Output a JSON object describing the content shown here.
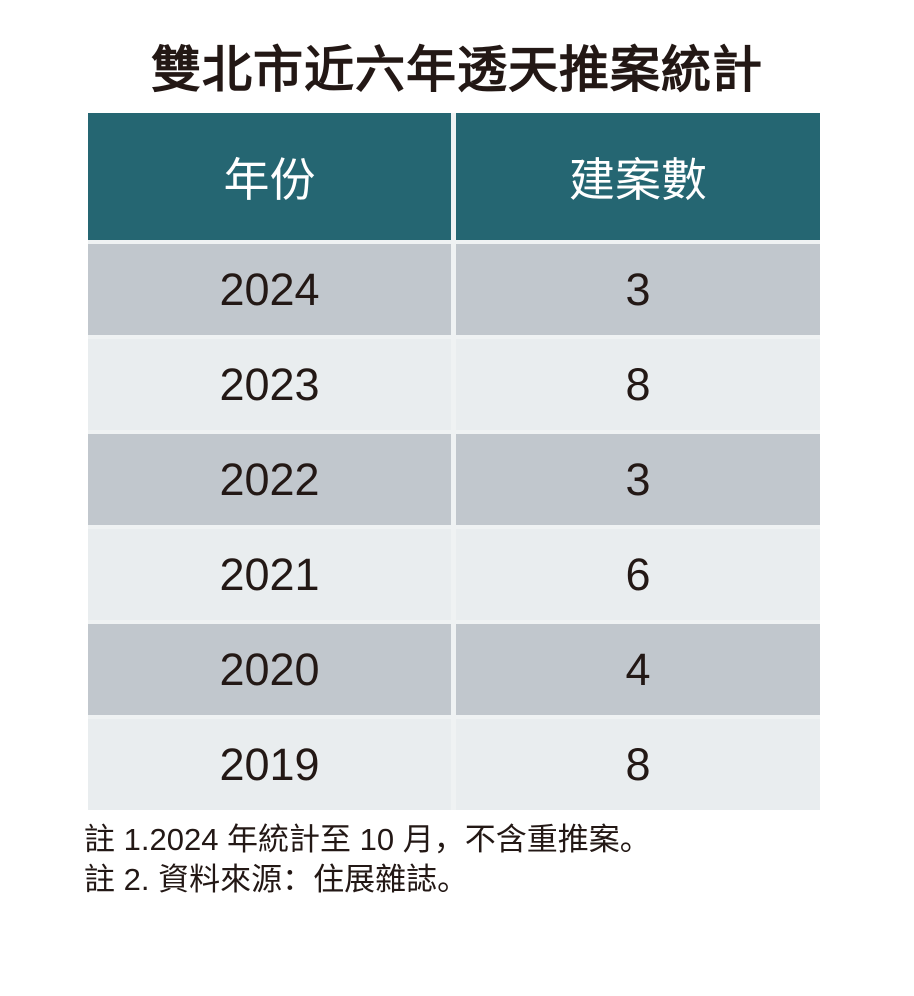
{
  "title": "雙北市近六年透天推案統計",
  "table": {
    "columns": [
      "年份",
      "建案數"
    ],
    "rows": [
      {
        "year": "2024",
        "count": "3"
      },
      {
        "year": "2023",
        "count": "8"
      },
      {
        "year": "2022",
        "count": "3"
      },
      {
        "year": "2021",
        "count": "6"
      },
      {
        "year": "2020",
        "count": "4"
      },
      {
        "year": "2019",
        "count": "8"
      }
    ]
  },
  "notes": [
    "註 1.2024 年統計至 10 月，不含重推案。",
    "註 2. 資料來源：住展雜誌。"
  ],
  "colors": {
    "header_bg": "#256672",
    "header_text": "#ffffff",
    "row_dark": "#c1c7cd",
    "row_light": "#e9edef",
    "divider": "#eff2f3",
    "text": "#231815",
    "page_bg": "#ffffff"
  },
  "chart_data": {
    "type": "table",
    "title": "雙北市近六年透天推案統計",
    "columns": [
      "年份",
      "建案數"
    ],
    "categories": [
      "2024",
      "2023",
      "2022",
      "2021",
      "2020",
      "2019"
    ],
    "values": [
      3,
      8,
      3,
      6,
      4,
      8
    ],
    "notes": [
      "註 1.2024 年統計至 10 月，不含重推案。",
      "註 2. 資料來源：住展雜誌。"
    ]
  }
}
